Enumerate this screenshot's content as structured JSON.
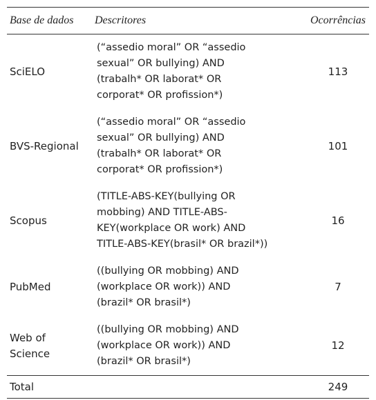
{
  "header": {
    "database": "Base de dados",
    "descriptors": "Descritores",
    "occurrences": "Ocorrências"
  },
  "table": {
    "rows": [
      {
        "database": "SciELO",
        "descriptors": [
          "(“assedio moral” OR “assedio",
          "sexual” OR bullying) AND",
          "(trabalh* OR laborat* OR",
          "corporat* OR profission*)"
        ],
        "occurrences": "113"
      },
      {
        "database": "BVS-Regional",
        "descriptors": [
          "(“assedio moral” OR “assedio",
          "sexual” OR bullying) AND",
          "(trabalh* OR laborat* OR",
          "corporat* OR profission*)"
        ],
        "occurrences": "101"
      },
      {
        "database": "Scopus",
        "descriptors": [
          "(TITLE-ABS-KEY(bullying OR",
          "mobbing) AND TITLE-ABS-",
          "KEY(workplace OR work) AND",
          "TITLE-ABS-KEY(brasil* OR brazil*))"
        ],
        "occurrences": "16"
      },
      {
        "database": "PubMed",
        "descriptors": [
          "((bullying OR mobbing) AND",
          "(workplace OR work)) AND",
          "(brazil* OR brasil*)"
        ],
        "occurrences": "7"
      },
      {
        "database": [
          "Web of",
          "Science"
        ],
        "descriptors": [
          "((bullying OR mobbing) AND",
          "(workplace OR work)) AND",
          "(brazil* OR brasil*)"
        ],
        "occurrences": "12"
      }
    ]
  },
  "total": {
    "label": "Total",
    "value": "249"
  }
}
